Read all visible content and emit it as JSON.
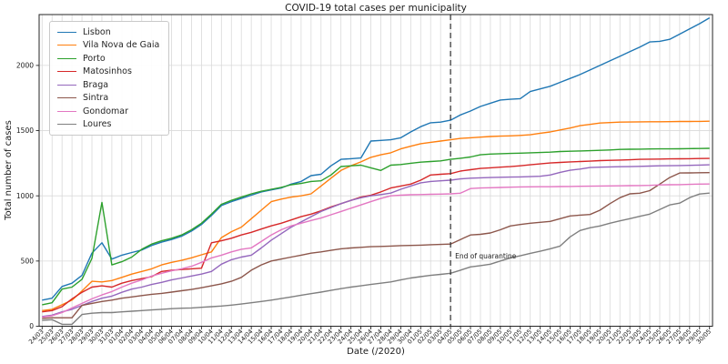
{
  "chart_data": {
    "type": "line",
    "title": "COVID-19 total cases per municipality",
    "xlabel": "Date (/2020)",
    "ylabel": "Total number of cases",
    "grid": true,
    "legend_position": "upper left",
    "ylim": [
      0,
      2390
    ],
    "yticks": [
      0,
      500,
      1000,
      1500,
      2000
    ],
    "annotation": {
      "text": "End of quarantine",
      "x": "04/05",
      "y": 520
    },
    "vline": {
      "x": "04/05",
      "style": "dashed",
      "color": "#2b2b2b"
    },
    "x": [
      "24/03",
      "25/03",
      "26/03",
      "27/03",
      "28/03",
      "29/03",
      "30/03",
      "31/03",
      "01/04",
      "02/04",
      "03/04",
      "04/04",
      "05/04",
      "06/04",
      "07/04",
      "08/04",
      "09/04",
      "10/04",
      "11/04",
      "12/04",
      "13/04",
      "14/04",
      "15/04",
      "16/04",
      "17/04",
      "18/04",
      "19/04",
      "20/04",
      "21/04",
      "22/04",
      "23/04",
      "24/04",
      "25/04",
      "26/04",
      "27/04",
      "28/04",
      "29/04",
      "30/04",
      "01/05",
      "02/05",
      "03/05",
      "04/05",
      "05/05",
      "06/05",
      "07/05",
      "08/05",
      "09/05",
      "10/05",
      "11/05",
      "12/05",
      "13/05",
      "14/05",
      "15/05",
      "16/05",
      "17/05",
      "18/05",
      "19/05",
      "20/05",
      "21/05",
      "22/05",
      "23/05",
      "24/05",
      "25/05",
      "26/05",
      "27/05",
      "28/05",
      "29/05",
      "30/05"
    ],
    "series": [
      {
        "name": "Lisbon",
        "color": "#1f77b4",
        "values": [
          200,
          215,
          305,
          330,
          390,
          560,
          640,
          515,
          545,
          565,
          585,
          620,
          645,
          665,
          690,
          730,
          780,
          850,
          925,
          955,
          980,
          1005,
          1030,
          1045,
          1060,
          1090,
          1110,
          1155,
          1165,
          1230,
          1280,
          1285,
          1290,
          1420,
          1425,
          1430,
          1445,
          1490,
          1530,
          1560,
          1565,
          1580,
          1620,
          1650,
          1685,
          1710,
          1735,
          1740,
          1745,
          1800,
          1820,
          1840,
          1870,
          1900,
          1930,
          1965,
          2000,
          2035,
          2070,
          2105,
          2140,
          2180,
          2185,
          2200,
          2240,
          2280,
          2320,
          2365
        ]
      },
      {
        "name": "Vila Nova de Gaia",
        "color": "#ff7f0e",
        "values": [
          120,
          130,
          165,
          200,
          270,
          345,
          340,
          350,
          375,
          400,
          420,
          440,
          470,
          490,
          505,
          525,
          548,
          570,
          680,
          725,
          760,
          825,
          890,
          955,
          975,
          990,
          1000,
          1015,
          1075,
          1135,
          1195,
          1230,
          1260,
          1295,
          1315,
          1330,
          1360,
          1380,
          1400,
          1410,
          1420,
          1430,
          1440,
          1445,
          1450,
          1455,
          1458,
          1460,
          1463,
          1468,
          1480,
          1490,
          1505,
          1520,
          1538,
          1548,
          1558,
          1562,
          1565,
          1566,
          1567,
          1568,
          1568,
          1569,
          1570,
          1570,
          1571,
          1572
        ]
      },
      {
        "name": "Porto",
        "color": "#2ca02c",
        "values": [
          165,
          180,
          285,
          300,
          360,
          520,
          950,
          470,
          495,
          530,
          590,
          630,
          655,
          675,
          700,
          740,
          790,
          860,
          935,
          965,
          990,
          1015,
          1035,
          1050,
          1065,
          1085,
          1095,
          1110,
          1115,
          1160,
          1225,
          1230,
          1235,
          1215,
          1195,
          1235,
          1240,
          1250,
          1258,
          1263,
          1268,
          1280,
          1288,
          1298,
          1315,
          1320,
          1323,
          1325,
          1327,
          1330,
          1332,
          1335,
          1340,
          1342,
          1344,
          1346,
          1349,
          1352,
          1356,
          1357,
          1358,
          1359,
          1360,
          1360,
          1361,
          1362,
          1363,
          1364
        ]
      },
      {
        "name": "Matosinhos",
        "color": "#d62728",
        "values": [
          110,
          120,
          150,
          210,
          260,
          300,
          310,
          300,
          330,
          350,
          365,
          380,
          420,
          430,
          435,
          440,
          445,
          640,
          655,
          675,
          700,
          720,
          745,
          770,
          790,
          815,
          840,
          860,
          885,
          915,
          940,
          965,
          990,
          1005,
          1030,
          1060,
          1075,
          1090,
          1120,
          1160,
          1165,
          1170,
          1190,
          1200,
          1210,
          1215,
          1220,
          1224,
          1230,
          1238,
          1245,
          1252,
          1256,
          1260,
          1263,
          1266,
          1270,
          1272,
          1274,
          1276,
          1280,
          1281,
          1282,
          1283,
          1284,
          1285,
          1286,
          1287
        ]
      },
      {
        "name": "Braga",
        "color": "#9467bd",
        "values": [
          75,
          85,
          110,
          130,
          160,
          190,
          215,
          231,
          260,
          285,
          300,
          320,
          336,
          355,
          370,
          385,
          400,
          420,
          476,
          510,
          530,
          545,
          600,
          660,
          710,
          760,
          800,
          840,
          880,
          910,
          940,
          965,
          985,
          1000,
          1010,
          1021,
          1050,
          1075,
          1100,
          1110,
          1115,
          1120,
          1130,
          1135,
          1138,
          1140,
          1142,
          1144,
          1145,
          1147,
          1150,
          1160,
          1180,
          1196,
          1205,
          1217,
          1220,
          1222,
          1223,
          1224,
          1226,
          1228,
          1230,
          1231,
          1232,
          1234,
          1236,
          1238
        ]
      },
      {
        "name": "Sintra",
        "color": "#8c564b",
        "values": [
          60,
          65,
          65,
          65,
          160,
          175,
          190,
          200,
          215,
          225,
          235,
          245,
          252,
          262,
          272,
          282,
          295,
          310,
          325,
          345,
          375,
          430,
          470,
          500,
          515,
          530,
          545,
          560,
          570,
          582,
          594,
          600,
          605,
          610,
          612,
          615,
          618,
          620,
          622,
          625,
          627,
          630,
          665,
          700,
          705,
          715,
          740,
          769,
          780,
          790,
          797,
          804,
          825,
          846,
          852,
          857,
          890,
          940,
          985,
          1015,
          1020,
          1040,
          1090,
          1140,
          1175,
          1176,
          1177,
          1178
        ]
      },
      {
        "name": "Gondomar",
        "color": "#e377c2",
        "values": [
          70,
          80,
          105,
          140,
          175,
          210,
          240,
          266,
          300,
          330,
          355,
          385,
          406,
          425,
          440,
          460,
          490,
          524,
          545,
          570,
          590,
          601,
          650,
          700,
          740,
          770,
          790,
          811,
          830,
          855,
          880,
          905,
          930,
          955,
          980,
          1000,
          1005,
          1008,
          1010,
          1012,
          1013,
          1015,
          1020,
          1056,
          1060,
          1062,
          1064,
          1066,
          1068,
          1069,
          1070,
          1070,
          1071,
          1072,
          1073,
          1074,
          1075,
          1076,
          1077,
          1078,
          1079,
          1080,
          1084,
          1085,
          1086,
          1088,
          1090,
          1091
        ]
      },
      {
        "name": "Loures",
        "color": "#7f7f7f",
        "values": [
          45,
          50,
          15,
          15,
          90,
          100,
          105,
          105,
          110,
          115,
          120,
          125,
          130,
          135,
          138,
          140,
          145,
          150,
          155,
          162,
          170,
          180,
          190,
          200,
          212,
          225,
          238,
          250,
          262,
          275,
          288,
          300,
          310,
          320,
          330,
          340,
          355,
          370,
          380,
          390,
          398,
          406,
          430,
          455,
          465,
          476,
          500,
          524,
          540,
          559,
          575,
          594,
          615,
          685,
          734,
          755,
          769,
          790,
          808,
          825,
          843,
          860,
          895,
          930,
          944,
          986,
          1014,
          1021
        ]
      }
    ]
  }
}
